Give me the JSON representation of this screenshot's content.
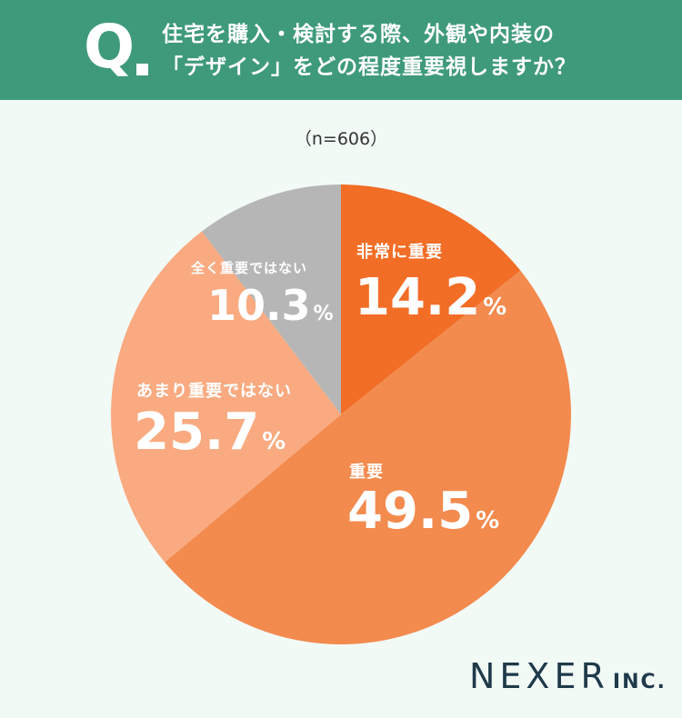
{
  "header": {
    "q_mark": "Q",
    "question_line1": "住宅を購入・検討する際、外観や内装の",
    "question_line2": "「デザイン」をどの程度重要視しますか？"
  },
  "sample_size": "（n=606）",
  "colors": {
    "header_bg": "#3f9a7c",
    "background": "#f2faf6",
    "very_important": "#f26d26",
    "important": "#f38a4e",
    "not_very_important": "#f9aa80",
    "not_important_at_all": "#b6b6b6"
  },
  "chart_data": {
    "type": "pie",
    "title": "住宅を購入・検討する際、外観や内装の「デザイン」をどの程度重要視しますか？",
    "start_angle": "12 o'clock",
    "direction": "clockwise",
    "slices": [
      {
        "label": "非常に重要",
        "value": 14.2,
        "display": "14.2",
        "unit": "%",
        "color": "#f26d26"
      },
      {
        "label": "重要",
        "value": 49.5,
        "display": "49.5",
        "unit": "%",
        "color": "#f38a4e"
      },
      {
        "label": "あまり重要ではない",
        "value": 25.7,
        "display": "25.7",
        "unit": "%",
        "color": "#f9aa80"
      },
      {
        "label": "全く重要ではない",
        "value": 10.3,
        "display": "10.3",
        "unit": "%",
        "color": "#b6b6b6"
      }
    ]
  },
  "logo": {
    "main": "NEXER",
    "sub": "INC."
  }
}
